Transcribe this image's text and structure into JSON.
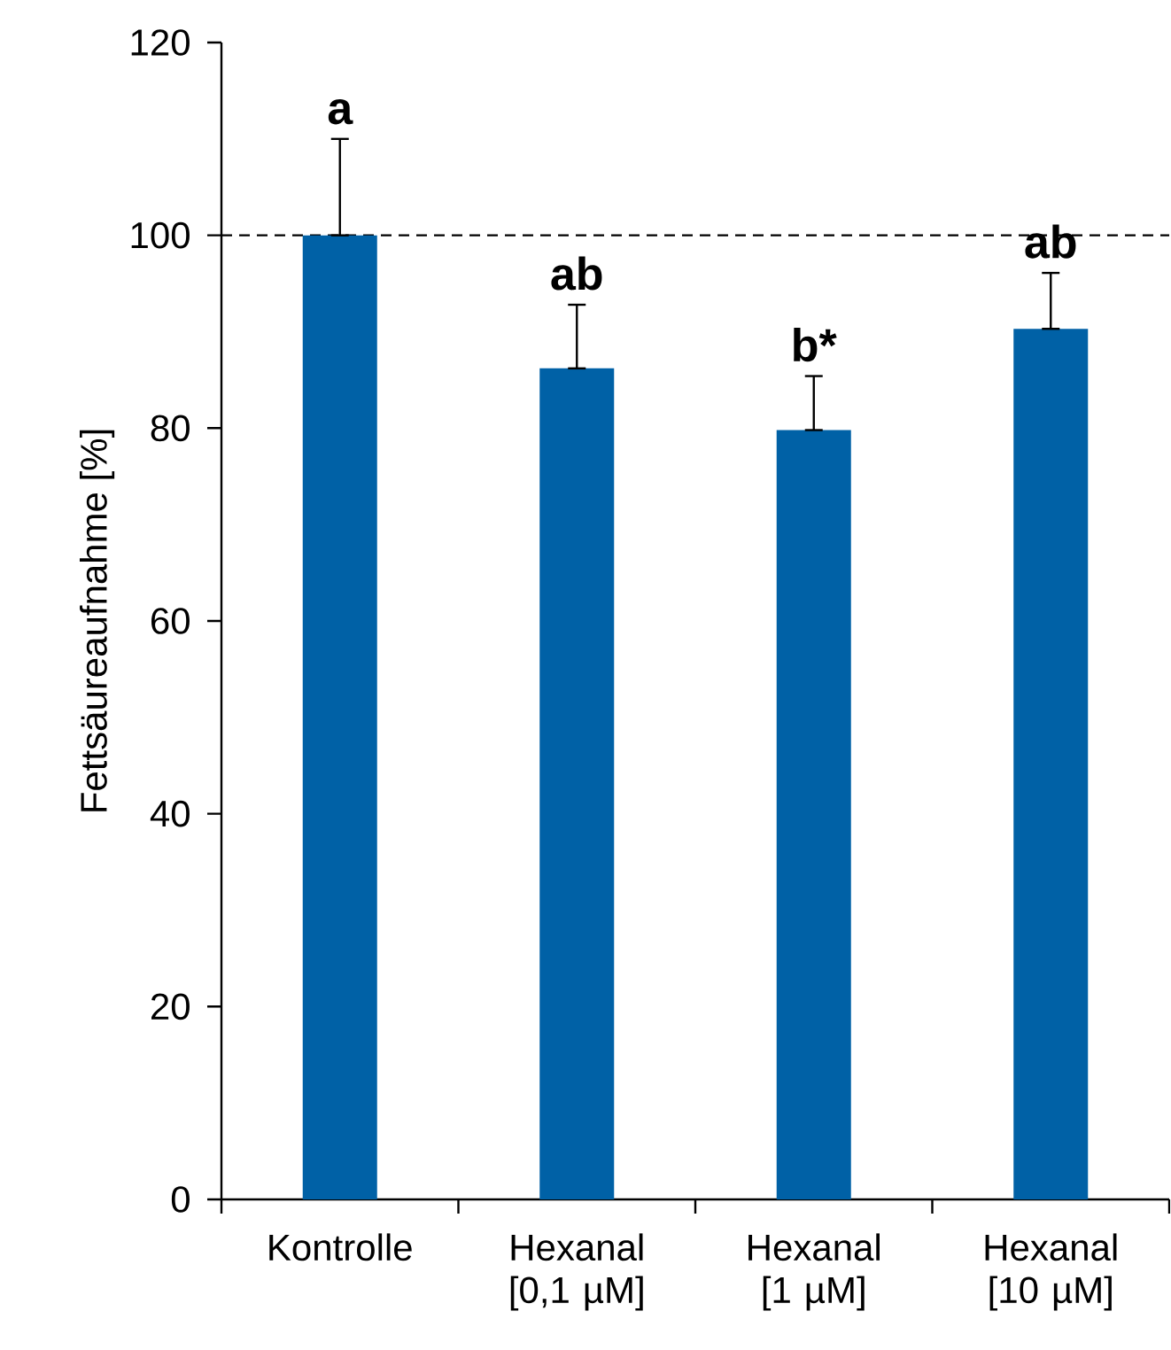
{
  "chart_data": {
    "type": "bar",
    "ylabel": "Fettsäureaufnahme [%]",
    "categories": [
      "Kontrolle",
      "Hexanal [0,1 µM]",
      "Hexanal [1 µM]",
      "Hexanal [10 µM]"
    ],
    "values": [
      100,
      86.2,
      79.8,
      90.3
    ],
    "errors": [
      [
        100,
        110
      ],
      [
        86.2,
        92.8
      ],
      [
        79.8,
        85.4
      ],
      [
        90.3,
        96.1
      ]
    ],
    "color": "#0061a6",
    "ylim": [
      0,
      120
    ],
    "yticks": [
      0,
      20,
      40,
      60,
      80,
      100,
      120
    ],
    "ref_lines": [
      {
        "axis": "y",
        "value": 100,
        "color": "#000000",
        "line_style": "dashed"
      }
    ],
    "annotations": [
      "a",
      "ab",
      "b*",
      "ab"
    ],
    "grid": false
  }
}
